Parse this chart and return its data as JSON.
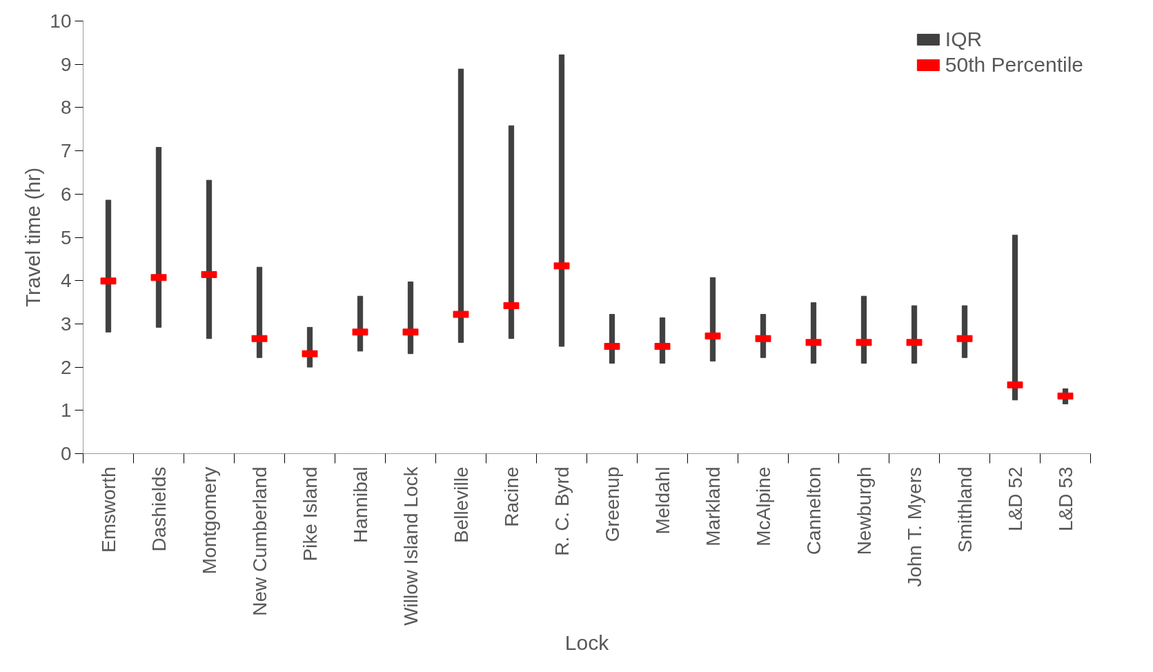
{
  "chart_data": {
    "type": "bar",
    "xlabel": "Lock",
    "ylabel": "Travel time (hr)",
    "categories": [
      "Emsworth",
      "Dashields",
      "Montgomery",
      "New Cumberland",
      "Pike Island",
      "Hannibal",
      "Willow Island Lock",
      "Belleville",
      "Racine",
      "R. C. Byrd",
      "Greenup",
      "Meldahl",
      "Markland",
      "McAlpine",
      "Cannelton",
      "Newburgh",
      "John T. Myers",
      "Smithland",
      "L&D 52",
      "L&D 53"
    ],
    "ylim": [
      0,
      10
    ],
    "yticks": [
      0,
      1,
      2,
      3,
      4,
      5,
      6,
      7,
      8,
      9,
      10
    ],
    "grid": false,
    "legend": "top right",
    "series": [
      {
        "name": "IQR",
        "color": "#404040",
        "base": [
          2.81,
          2.92,
          2.66,
          2.22,
          2.0,
          2.37,
          2.31,
          2.57,
          2.66,
          2.48,
          2.09,
          2.09,
          2.14,
          2.22,
          2.09,
          2.09,
          2.09,
          2.22,
          1.24,
          1.15
        ],
        "values": [
          3.05,
          4.16,
          3.66,
          2.09,
          0.92,
          1.27,
          1.66,
          6.32,
          4.92,
          6.74,
          1.13,
          1.05,
          1.93,
          1.0,
          1.4,
          1.55,
          1.33,
          1.2,
          3.81,
          0.35
        ]
      },
      {
        "name": "50th Percentile",
        "type": "scatter",
        "marker": "square",
        "color": "#ff0000",
        "values": [
          3.99,
          4.07,
          4.14,
          2.66,
          2.31,
          2.81,
          2.81,
          3.22,
          3.42,
          4.34,
          2.48,
          2.48,
          2.72,
          2.66,
          2.57,
          2.57,
          2.57,
          2.66,
          1.59,
          1.33
        ]
      }
    ]
  }
}
